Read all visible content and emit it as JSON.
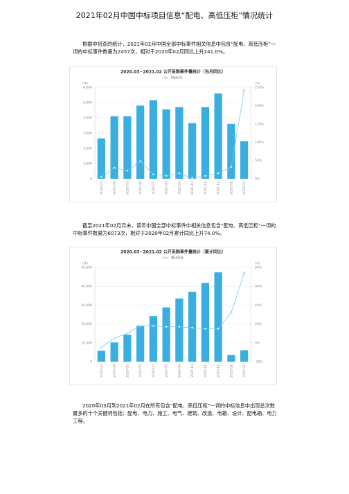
{
  "document": {
    "title": "2021年02月中国中标项目信息“配电、高低压柜”情况统计",
    "paragraphs": [
      "根据中招查的统计，2021年02月中国全部中标事件相关信息中包含“配电、高低压柜”一词的中标事件数量为2457次，相对于2020年02月同比上升241.0%。",
      "截至2021年02月月末，该年中国全部中标事件中相关信息包含“配电、高低压柜”一词的中标事件数量为6073次，相对于2020年02月累计同比上升74.0%。",
      "2020年03月到2021年02月在所有包含“配电、高低压柜”一词的中标信息中出现总次数最多的十个关键词包括：配电、电力、施工、电气、建筑、改造、电箱、设计、配电箱、电力工程。"
    ]
  },
  "chart_data": [
    {
      "type": "bar-line",
      "title": "2020.03~2021.02 公开采购事件量统计（当月同比）",
      "y_label": "(次)",
      "y2_label": "(%)",
      "categories": [
        "2020-03",
        "2020-04",
        "2020-05",
        "2020-06",
        "2020-07",
        "2020-08",
        "2020-09",
        "2020-10",
        "2020-11",
        "2020-12",
        "2021-01",
        "2021-02"
      ],
      "series": [
        {
          "name": null,
          "type": "bar",
          "color": "#3aaee0",
          "values": [
            2650,
            4100,
            4100,
            4800,
            5150,
            4550,
            4700,
            3650,
            4700,
            5600,
            3600,
            2457
          ]
        },
        {
          "name": "同比(%)",
          "type": "line",
          "axis": "y2",
          "color": "#6fcbe6",
          "values": [
            5,
            30,
            22,
            48,
            12,
            8,
            15,
            2,
            8,
            15,
            32,
            241
          ]
        }
      ],
      "ylim": [
        0,
        6000
      ],
      "yticks": [
        0,
        {
          "value": 1000,
          "label": "1,000"
        },
        {
          "value": 2000,
          "label": "2,000"
        },
        {
          "value": 3000,
          "label": "3,000"
        },
        {
          "value": 4000,
          "label": "4,000"
        },
        {
          "value": 5000,
          "label": "5,000"
        },
        {
          "value": 6000,
          "label": "6,000"
        }
      ],
      "y2lim": [
        0,
        250
      ],
      "y2ticks": [
        {
          "value": 0,
          "label": "0%"
        },
        {
          "value": 50,
          "label": "50%"
        },
        {
          "value": 100,
          "label": "100%"
        },
        {
          "value": 150,
          "label": "150%"
        },
        {
          "value": 200,
          "label": "200%"
        },
        {
          "value": 250,
          "label": "250%"
        }
      ],
      "grid": true
    },
    {
      "type": "bar-line",
      "title": "2020.03~2021.02 公开采购事件量统计（累计同比）",
      "y_label": "(次)",
      "y2_label": "(%)",
      "categories": [
        "2020-03",
        "2020-04",
        "2020-05",
        "2020-06",
        "2020-07",
        "2020-08",
        "2020-09",
        "2020-10",
        "2020-11",
        "2020-12",
        "2021-01",
        "2021-02"
      ],
      "series": [
        {
          "name": null,
          "type": "bar",
          "color": "#3aaee0",
          "values": [
            5800,
            10200,
            14300,
            19100,
            24200,
            28800,
            33500,
            37100,
            41800,
            47400,
            3600,
            6073
          ]
        },
        {
          "name": "累计同比",
          "type": "line",
          "axis": "y2",
          "color": "#6fcbe6",
          "values": [
            -5,
            5,
            10,
            18,
            18,
            17,
            17,
            16,
            15,
            15,
            32,
            74
          ]
        }
      ],
      "ylim": [
        0,
        50000
      ],
      "yticks": [
        0,
        {
          "value": 10000,
          "label": "10,000"
        },
        {
          "value": 20000,
          "label": "20,000"
        },
        {
          "value": 30000,
          "label": "30,000"
        },
        {
          "value": 40000,
          "label": "40,000"
        },
        {
          "value": 50000,
          "label": "50,000"
        }
      ],
      "y2lim": [
        -20,
        80
      ],
      "y2ticks": [
        {
          "value": -20,
          "label": "-20%"
        },
        {
          "value": 0,
          "label": "0%"
        },
        {
          "value": 20,
          "label": "20%"
        },
        {
          "value": 40,
          "label": "40%"
        },
        {
          "value": 60,
          "label": "60%"
        },
        {
          "value": 80,
          "label": "80%"
        }
      ],
      "grid": true
    }
  ]
}
